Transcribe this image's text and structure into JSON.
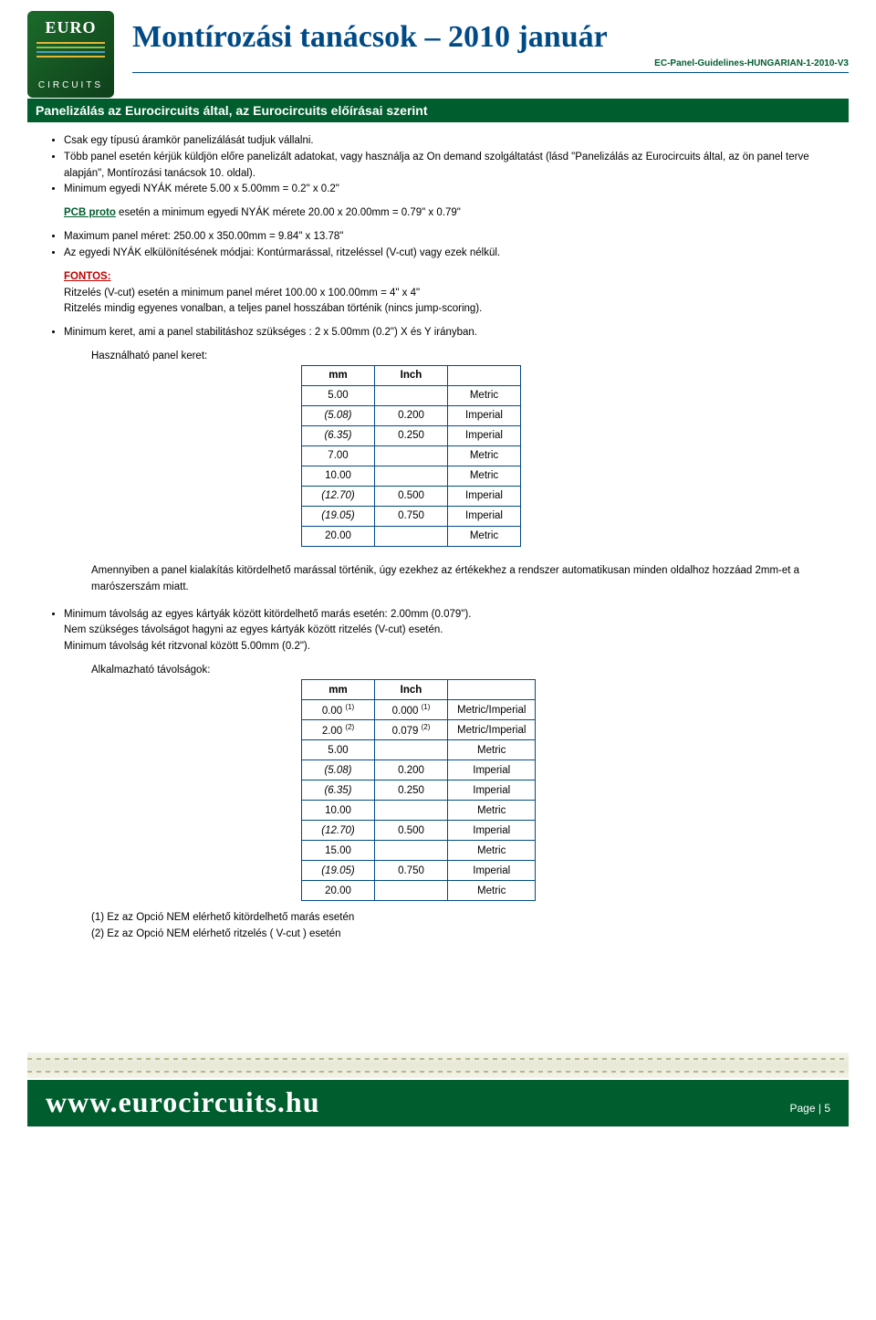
{
  "logo": {
    "top": "EURO",
    "bottom": "CIRCUITS"
  },
  "doc": {
    "title": "Montírozási tanácsok – 2010 január",
    "sub": "EC-Panel-Guidelines-HUNGARIAN-1-2010-V3"
  },
  "section_title": "Panelizálás az Eurocircuits által, az Eurocircuits előírásai szerint",
  "bul1": "Csak egy típusú áramkör panelizálását tudjuk vállalni.",
  "bul2": "Több panel esetén kérjük küldjön előre panelizált adatokat, vagy használja az On demand szolgáltatást (lásd \"Panelizálás az Eurocircuits által, az ön panel terve alapján\", Montírozási tanácsok 10. oldal).",
  "bul3": "Minimum egyedi NYÁK mérete 5.00 x 5.00mm = 0.2\" x 0.2\"",
  "pcb_proto_pre": "PCB proto",
  "pcb_proto_rest": " esetén a minimum egyedi NYÁK mérete 20.00 x 20.00mm = 0.79\" x 0.79\"",
  "bul4": "Maximum panel méret: 250.00 x 350.00mm = 9.84\" x 13.78\"",
  "bul5": "Az egyedi NYÁK elkülönítésének módjai: Kontúrmarással, ritzeléssel (V-cut) vagy ezek nélkül.",
  "fontos_label": "FONTOS:",
  "fontos_l1": "Ritzelés (V-cut) esetén a minimum panel méret 100.00 x 100.00mm = 4\" x 4\"",
  "fontos_l2": "Ritzelés mindig egyenes vonalban, a teljes panel hosszában történik (nincs jump-scoring).",
  "bul6": "Minimum keret, ami a panel stabilitáshoz szükséges : 2 x 5.00mm (0.2\") X és Y irányban.",
  "frame_used_label": "Használható panel keret:",
  "table1": {
    "headers": [
      "mm",
      "Inch",
      ""
    ],
    "rows": [
      {
        "mm": "5.00",
        "inch": "",
        "sys": "Metric",
        "it": false
      },
      {
        "mm": "(5.08)",
        "inch": "0.200",
        "sys": "Imperial",
        "it": true
      },
      {
        "mm": "(6.35)",
        "inch": "0.250",
        "sys": "Imperial",
        "it": true
      },
      {
        "mm": "7.00",
        "inch": "",
        "sys": "Metric",
        "it": false
      },
      {
        "mm": "10.00",
        "inch": "",
        "sys": "Metric",
        "it": false
      },
      {
        "mm": "(12.70)",
        "inch": "0.500",
        "sys": "Imperial",
        "it": true
      },
      {
        "mm": "(19.05)",
        "inch": "0.750",
        "sys": "Imperial",
        "it": true
      },
      {
        "mm": "20.00",
        "inch": "",
        "sys": "Metric",
        "it": false
      }
    ]
  },
  "para_after_t1": "Amennyiben a panel kialakítás kitördelhető marással történik, úgy ezekhez az értékekhez a rendszer automatikusan minden oldalhoz hozzáad 2mm-et a marószerszám miatt.",
  "bul7a": "Minimum távolság az egyes kártyák között kitördelhető marás esetén: 2.00mm (0.079\").",
  "bul7b": "Nem szükséges távolságot hagyni az egyes kártyák között ritzelés (V-cut) esetén.",
  "bul7c": "Minimum távolság két ritzvonal között 5.00mm (0.2\").",
  "dist_label": "Alkalmazható távolságok:",
  "table2": {
    "headers": [
      "mm",
      "Inch",
      ""
    ],
    "rows": [
      {
        "mm": "0.00",
        "mm_sup": "(1)",
        "inch": "0.000",
        "inch_sup": "(1)",
        "sys": "Metric/Imperial",
        "it": false
      },
      {
        "mm": "2.00",
        "mm_sup": "(2)",
        "inch": "0.079",
        "inch_sup": "(2)",
        "sys": "Metric/Imperial",
        "it": false
      },
      {
        "mm": "5.00",
        "mm_sup": "",
        "inch": "",
        "inch_sup": "",
        "sys": "Metric",
        "it": false
      },
      {
        "mm": "(5.08)",
        "mm_sup": "",
        "inch": "0.200",
        "inch_sup": "",
        "sys": "Imperial",
        "it": true
      },
      {
        "mm": "(6.35)",
        "mm_sup": "",
        "inch": "0.250",
        "inch_sup": "",
        "sys": "Imperial",
        "it": true
      },
      {
        "mm": "10.00",
        "mm_sup": "",
        "inch": "",
        "inch_sup": "",
        "sys": "Metric",
        "it": false
      },
      {
        "mm": "(12.70)",
        "mm_sup": "",
        "inch": "0.500",
        "inch_sup": "",
        "sys": "Imperial",
        "it": true
      },
      {
        "mm": "15.00",
        "mm_sup": "",
        "inch": "",
        "inch_sup": "",
        "sys": "Metric",
        "it": false
      },
      {
        "mm": "(19.05)",
        "mm_sup": "",
        "inch": "0.750",
        "inch_sup": "",
        "sys": "Imperial",
        "it": true
      },
      {
        "mm": "20.00",
        "mm_sup": "",
        "inch": "",
        "inch_sup": "",
        "sys": "Metric",
        "it": false
      }
    ]
  },
  "note1": "(1) Ez az Opció NEM elérhető kitördelhető marás esetén",
  "note2": "(2) Ez az Opció NEM elérhető ritzelés ( V-cut ) esetén",
  "footer": {
    "url": "www.eurocircuits.hu",
    "page_label": "Page",
    "page_num": "5"
  },
  "colors": {
    "brand_blue": "#004a86",
    "brand_green": "#005d2e",
    "red": "#c00000"
  }
}
